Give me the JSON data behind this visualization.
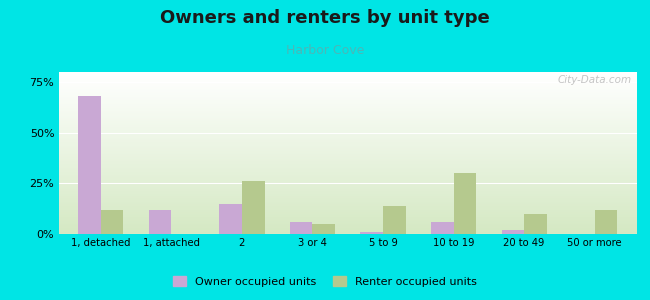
{
  "title": "Owners and renters by unit type",
  "subtitle": "Harbor Cove",
  "categories": [
    "1, detached",
    "1, attached",
    "2",
    "3 or 4",
    "5 to 9",
    "10 to 19",
    "20 to 49",
    "50 or more"
  ],
  "owner_values": [
    68,
    12,
    15,
    6,
    1,
    6,
    2,
    0
  ],
  "renter_values": [
    12,
    0,
    26,
    5,
    14,
    30,
    10,
    12
  ],
  "owner_color": "#c9a8d4",
  "renter_color": "#b5c98e",
  "background_color": "#00e5e5",
  "ylim": [
    0,
    80
  ],
  "yticks": [
    0,
    25,
    50,
    75
  ],
  "ytick_labels": [
    "0%",
    "25%",
    "50%",
    "75%"
  ],
  "title_fontsize": 13,
  "subtitle_fontsize": 9,
  "subtitle_color": "#4ab8b8",
  "legend_owner": "Owner occupied units",
  "legend_renter": "Renter occupied units",
  "watermark": "City-Data.com",
  "bar_width": 0.32
}
